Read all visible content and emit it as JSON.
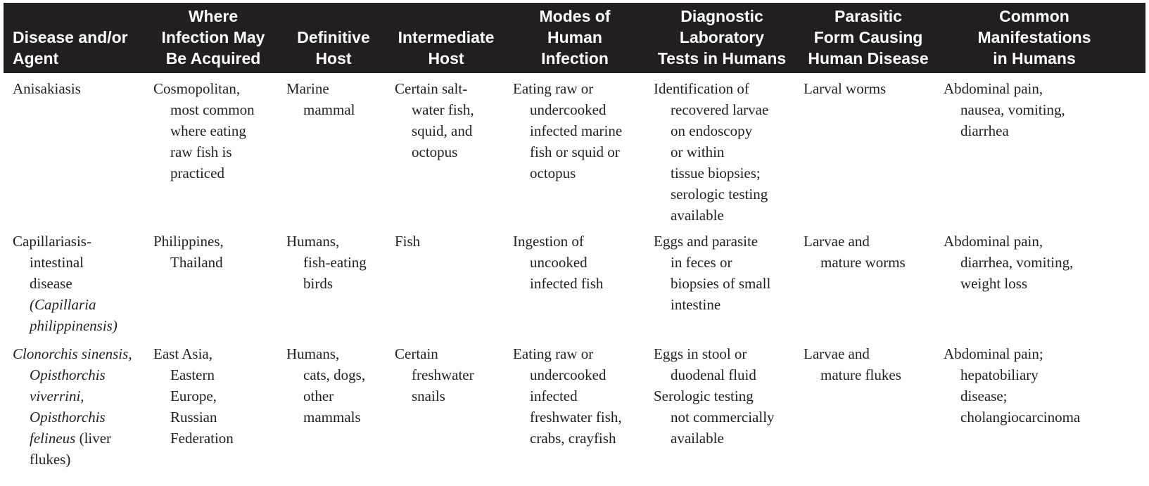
{
  "table": {
    "headers": [
      "Disease and/or\nAgent",
      "Where\nInfection May\nBe Acquired",
      "Definitive\nHost",
      "Intermediate\nHost",
      "Modes of\nHuman\nInfection",
      "Diagnostic\nLaboratory\nTests in Humans",
      "Parasitic\nForm Causing\nHuman Disease",
      "Common\nManifestations\nin Humans"
    ],
    "rows": [
      {
        "disease": [
          "Anisakiasis"
        ],
        "where": [
          "Cosmopolitan,",
          "most common",
          "where eating",
          "raw fish is",
          "practiced"
        ],
        "definitive": [
          "Marine",
          "mammal"
        ],
        "intermediate": [
          "Certain salt-",
          "water fish,",
          "squid, and",
          "octopus"
        ],
        "modes": [
          "Eating raw or",
          "undercooked",
          "infected marine",
          "fish or squid or",
          "octopus"
        ],
        "tests": [
          "Identification of",
          "recovered larvae",
          "on endoscopy",
          "or within",
          "tissue biopsies;",
          "serologic testing",
          "available"
        ],
        "form": [
          "Larval worms"
        ],
        "manifestations": [
          "Abdominal pain,",
          "nausea, vomiting,",
          "diarrhea"
        ]
      },
      {
        "disease": [
          "Capillariasis-",
          "intestinal",
          "disease",
          "(Capillaria",
          "philippinensis)"
        ],
        "where": [
          "Philippines,",
          "Thailand"
        ],
        "definitive": [
          "Humans,",
          "fish-eating",
          "birds"
        ],
        "intermediate": [
          "Fish"
        ],
        "modes": [
          "Ingestion of",
          "uncooked",
          "infected fish"
        ],
        "tests": [
          "Eggs and parasite",
          "in feces or",
          "biopsies of small",
          "intestine"
        ],
        "form": [
          "Larvae and",
          "mature worms"
        ],
        "manifestations": [
          "Abdominal pain,",
          "diarrhea, vomiting,",
          "weight loss"
        ]
      },
      {
        "disease": [
          "Clonorchis sinensis,",
          "Opisthorchis",
          "viverrini,",
          "Opisthorchis",
          "felineus",
          "(liver",
          "flukes)"
        ],
        "where": [
          "East Asia,",
          "Eastern",
          "Europe,",
          "Russian",
          "Federation"
        ],
        "definitive": [
          "Humans,",
          "cats, dogs,",
          "other",
          "mammals"
        ],
        "intermediate": [
          "Certain",
          "freshwater",
          "snails"
        ],
        "modes": [
          "Eating raw or",
          "undercooked",
          "infected",
          "freshwater fish,",
          "crabs, crayfish"
        ],
        "tests": [
          "Eggs in stool or",
          "duodenal fluid",
          "Serologic testing",
          "not commercially",
          "available"
        ],
        "form": [
          "Larvae and",
          "mature flukes"
        ],
        "manifestations": [
          "Abdominal pain;",
          "hepatobiliary",
          "disease;",
          "cholangiocarcinoma"
        ]
      }
    ]
  }
}
